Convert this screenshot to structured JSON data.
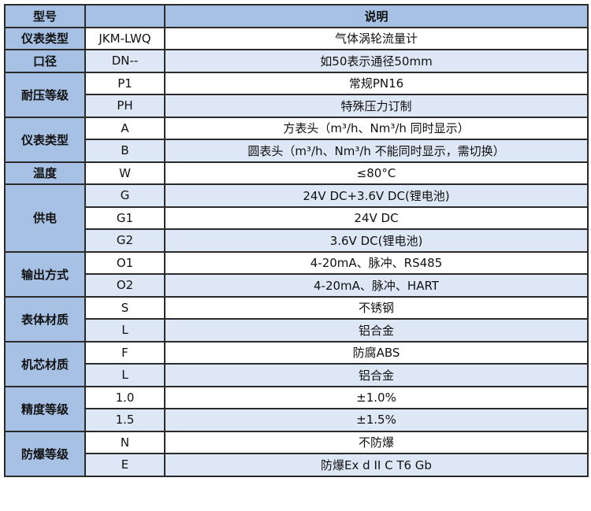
{
  "header": {
    "col1": "型号",
    "col2": "",
    "col3": "说明"
  },
  "groups": [
    {
      "label": "仪表类型",
      "rows": [
        {
          "code": "JKM-LWQ",
          "desc": "气体涡轮流量计"
        }
      ]
    },
    {
      "label": "口径",
      "rows": [
        {
          "code": "DN--",
          "desc": "如50表示通径50mm"
        }
      ]
    },
    {
      "label": "耐压等级",
      "rows": [
        {
          "code": "P1",
          "desc": "常规PN16"
        },
        {
          "code": "PH",
          "desc": "特殊压力订制"
        }
      ]
    },
    {
      "label": "仪表类型",
      "rows": [
        {
          "code": "A",
          "desc": "方表头（m³/h、Nm³/h 同时显示）"
        },
        {
          "code": "B",
          "desc": "圆表头（m³/h、Nm³/h 不能同时显示，需切换）"
        }
      ]
    },
    {
      "label": "温度",
      "rows": [
        {
          "code": "W",
          "desc": "≤80°C"
        }
      ]
    },
    {
      "label": "供电",
      "rows": [
        {
          "code": "G",
          "desc": "24V DC+3.6V DC(锂电池)"
        },
        {
          "code": "G1",
          "desc": "24V DC"
        },
        {
          "code": "G2",
          "desc": "3.6V DC(锂电池)"
        }
      ]
    },
    {
      "label": "输出方式",
      "rows": [
        {
          "code": "O1",
          "desc": "4-20mA、脉冲、RS485"
        },
        {
          "code": "O2",
          "desc": "4-20mA、脉冲、HART"
        }
      ]
    },
    {
      "label": "表体材质",
      "rows": [
        {
          "code": "S",
          "desc": "不锈钢"
        },
        {
          "code": "L",
          "desc": "铝合金"
        }
      ]
    },
    {
      "label": "机芯材质",
      "rows": [
        {
          "code": "F",
          "desc": "防腐ABS"
        },
        {
          "code": "L",
          "desc": "铝合金"
        }
      ]
    },
    {
      "label": "精度等级",
      "rows": [
        {
          "code": "1.0",
          "desc": "±1.0%"
        },
        {
          "code": "1.5",
          "desc": "±1.5%"
        }
      ]
    },
    {
      "label": "防爆等级",
      "rows": [
        {
          "code": "N",
          "desc": "不防爆"
        },
        {
          "code": "E",
          "desc": "防爆Ex d II C T6 Gb"
        }
      ]
    }
  ],
  "colors": {
    "header_bg": "#a7c1e4",
    "row_light": "#dde7f5",
    "row_white": "#ffffff",
    "border": "#2a2a2a"
  }
}
